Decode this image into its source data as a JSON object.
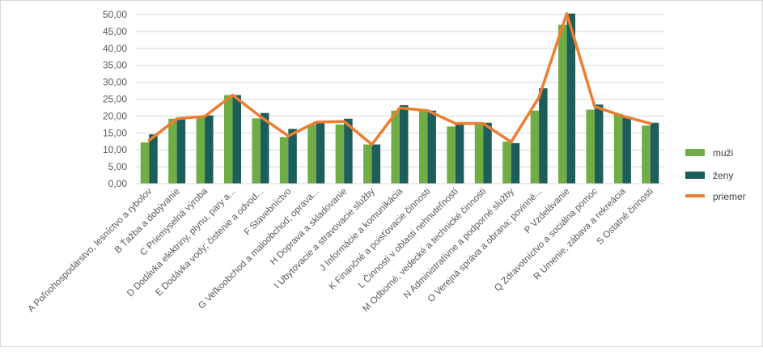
{
  "chart_data": {
    "type": "bar",
    "categories": [
      "A Poľnohospodárstvo, lesníctvo a rybolov",
      "B Ťažba a dobývanie",
      "C Priemyselná výroba",
      "D Dodávka elektriny, plynu, pary a...",
      "E Dodávka vody; čistenie a odvod...",
      "F Stavebníctvo",
      "G Veľkoobchod a maloobchod; oprava...",
      "H Doprava a skladovanie",
      "I Ubytovacie a stravovacie služby",
      "J Informácie a komunikácia",
      "K Finančné a poisťovacie činnosti",
      "L Činnosti v oblasti nehnuteľností",
      "M Odborné, vedecké a technické činnosti",
      "N Administratívne a podporné služby",
      "O Verejná správa a obrana; povinné...",
      "P Vzdelávanie",
      "Q Zdravotníctvo a sociálna pomoc",
      "R Umenie, zábava a rekreácia",
      "S Ostatné činnosti"
    ],
    "series": [
      {
        "name": "muži",
        "kind": "bar",
        "color": "#70ad47",
        "values": [
          12.2,
          19.2,
          19.7,
          26.2,
          19.3,
          13.8,
          17.5,
          17.5,
          11.6,
          21.6,
          21.6,
          16.9,
          17.5,
          12.4,
          21.6,
          47.0,
          21.9,
          20.6,
          17.2
        ]
      },
      {
        "name": "ženy",
        "kind": "bar",
        "color": "#1b5e5a",
        "values": [
          14.6,
          19.2,
          20.2,
          26.2,
          20.9,
          16.2,
          17.9,
          19.2,
          11.6,
          23.2,
          21.6,
          17.6,
          18.0,
          12.0,
          28.2,
          50.3,
          23.4,
          19.6,
          18.0
        ]
      },
      {
        "name": "priemer",
        "kind": "line",
        "color": "#ed7d31",
        "values": [
          12.8,
          19.2,
          19.9,
          26.2,
          19.8,
          14.1,
          18.2,
          18.4,
          11.6,
          22.4,
          21.6,
          17.8,
          17.8,
          12.3,
          25.5,
          50.3,
          22.8,
          20.0,
          17.8
        ]
      }
    ],
    "y_ticks": [
      "0,00",
      "5,00",
      "10,00",
      "15,00",
      "20,00",
      "25,00",
      "30,00",
      "35,00",
      "40,00",
      "45,00",
      "50,00"
    ],
    "ylim": [
      0,
      50
    ],
    "grid": true,
    "legend_position": "right"
  }
}
